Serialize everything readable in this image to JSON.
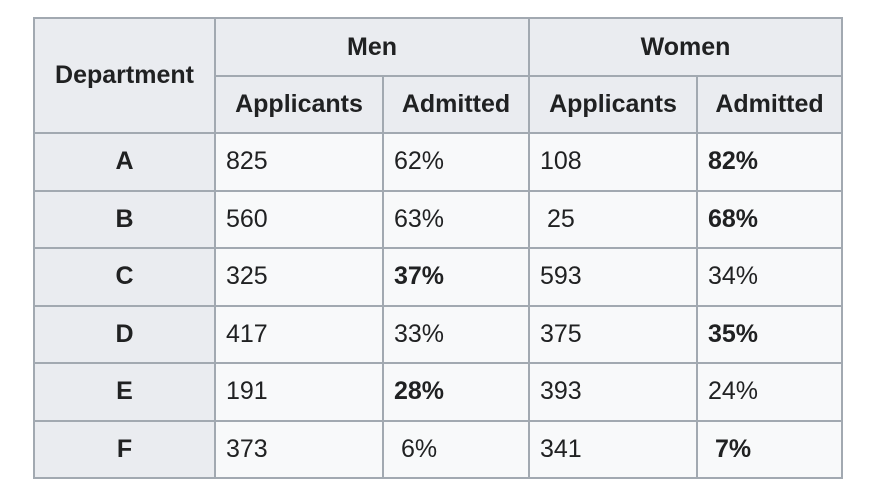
{
  "table": {
    "header": {
      "department": "Department",
      "men": "Men",
      "women": "Women",
      "applicants": "Applicants",
      "admitted": "Admitted"
    },
    "rows": [
      {
        "dept": "A",
        "men_applicants": "825",
        "men_admitted": "62%",
        "women_applicants": "108",
        "women_admitted": "82%",
        "men_bold": false,
        "women_bold": true
      },
      {
        "dept": "B",
        "men_applicants": "560",
        "men_admitted": "63%",
        "women_applicants": " 25",
        "women_admitted": "68%",
        "men_bold": false,
        "women_bold": true
      },
      {
        "dept": "C",
        "men_applicants": "325",
        "men_admitted": "37%",
        "women_applicants": "593",
        "women_admitted": "34%",
        "men_bold": true,
        "women_bold": false
      },
      {
        "dept": "D",
        "men_applicants": "417",
        "men_admitted": "33%",
        "women_applicants": "375",
        "women_admitted": "35%",
        "men_bold": false,
        "women_bold": true
      },
      {
        "dept": "E",
        "men_applicants": "191",
        "men_admitted": "28%",
        "women_applicants": "393",
        "women_admitted": "24%",
        "men_bold": true,
        "women_bold": false
      },
      {
        "dept": "F",
        "men_applicants": "373",
        "men_admitted": " 6%",
        "women_applicants": "341",
        "women_admitted": " 7%",
        "men_bold": false,
        "women_bold": true
      }
    ]
  },
  "colors": {
    "header_bg": "#eaecf0",
    "cell_bg": "#f8f9fa",
    "border": "#a2a9b1",
    "text": "#202122"
  }
}
